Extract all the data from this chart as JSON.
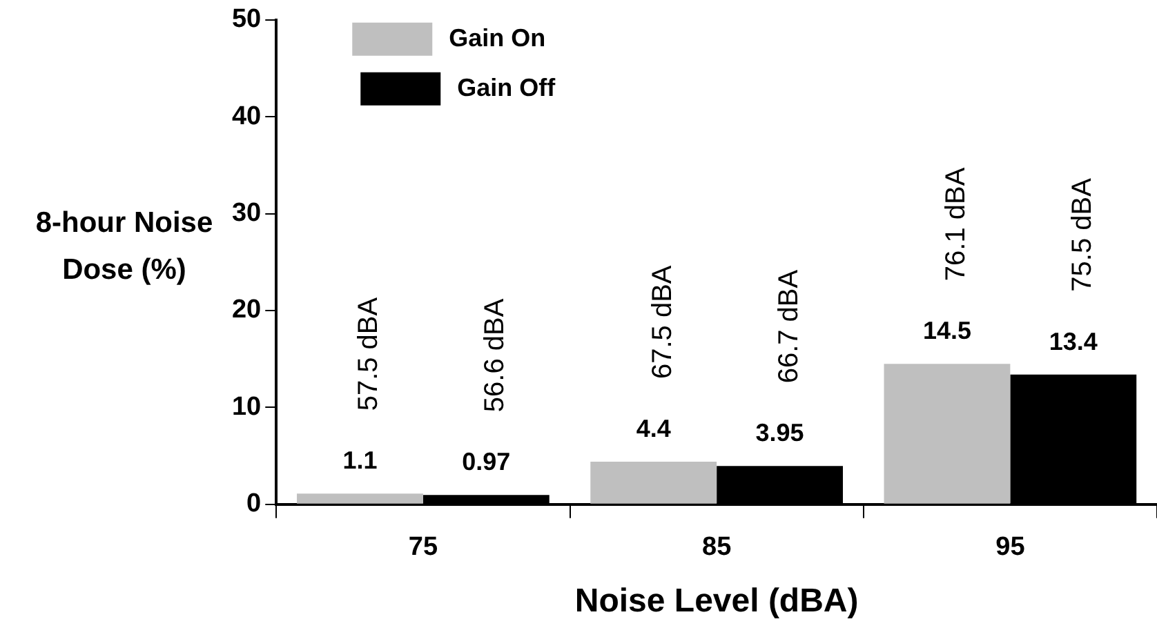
{
  "chart_data": {
    "type": "bar",
    "xlabel": "Noise Level (dBA)",
    "ylabel": "8-hour Noise Dose (%)",
    "categories": [
      "75",
      "85",
      "95"
    ],
    "series": [
      {
        "name": "Gain On",
        "color": "#bfbfbf",
        "values": [
          1.1,
          4.4,
          14.5
        ]
      },
      {
        "name": "Gain Off",
        "color": "#000000",
        "values": [
          0.97,
          3.95,
          13.4
        ]
      }
    ],
    "ylim": [
      0,
      50
    ],
    "yticks": [
      0,
      10,
      20,
      30,
      40,
      50
    ],
    "grid": false,
    "legend": "top left",
    "data_labels": true,
    "annotations": [
      "57.5 dBA",
      "56.6 dBA",
      "67.5 dBA",
      "66.7 dBA",
      "76.1 dBA",
      "75.5 dBA"
    ]
  }
}
